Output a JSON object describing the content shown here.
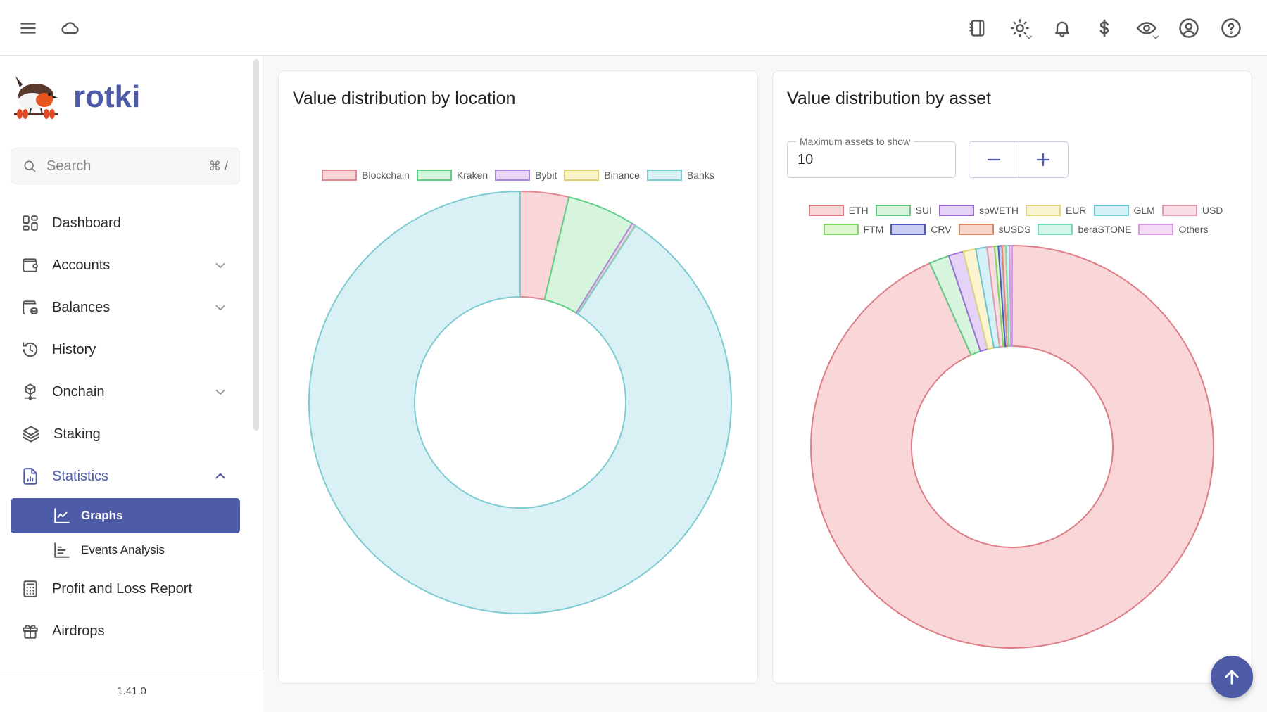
{
  "topbar": {
    "left_icons": [
      "menu-icon",
      "cloud-icon"
    ],
    "right_icons": [
      "notes-icon",
      "theme-sun-icon",
      "bell-icon",
      "currency-dollar-icon",
      "privacy-eye-icon",
      "account-icon",
      "help-icon"
    ]
  },
  "sidebar": {
    "brand": "rotki",
    "search": {
      "placeholder": "Search",
      "shortcut": "⌘  /"
    },
    "items": [
      {
        "label": "Dashboard",
        "icon": "dashboard-icon",
        "expandable": false
      },
      {
        "label": "Accounts",
        "icon": "wallet-icon",
        "expandable": true
      },
      {
        "label": "Balances",
        "icon": "balances-icon",
        "expandable": true
      },
      {
        "label": "History",
        "icon": "history-icon",
        "expandable": false
      },
      {
        "label": "Onchain",
        "icon": "onchain-icon",
        "expandable": true
      },
      {
        "label": "Staking",
        "icon": "layers-icon",
        "expandable": false
      },
      {
        "label": "Statistics",
        "icon": "statistics-icon",
        "expandable": true,
        "expanded": true
      },
      {
        "label": "Profit and Loss Report",
        "icon": "calculator-icon",
        "expandable": false
      },
      {
        "label": "Airdrops",
        "icon": "gift-icon",
        "expandable": false
      }
    ],
    "sub_items": [
      {
        "label": "Graphs",
        "icon": "line-chart-icon",
        "selected": true
      },
      {
        "label": "Events Analysis",
        "icon": "bar-chart-icon",
        "selected": false
      }
    ],
    "version": "1.41.0"
  },
  "location_card": {
    "title": "Value distribution by location"
  },
  "asset_card": {
    "title": "Value distribution by asset",
    "max_assets_label": "Maximum assets to show",
    "max_assets_value": "10",
    "decrement_label": "−",
    "increment_label": "+"
  },
  "colors": {
    "primary": "#4e5ba6"
  },
  "chart_data": [
    {
      "type": "pie",
      "variant": "doughnut",
      "title": "Value distribution by location",
      "legend_position": "top",
      "categories": [
        "Blockchain",
        "Kraken",
        "Bybit",
        "Binance",
        "Banks"
      ],
      "values": [
        3.7,
        5.2,
        0.25,
        0.05,
        90.8
      ],
      "unit": "% (estimated)",
      "fills": [
        "#f9d6d8",
        "#d6f5dc",
        "#ead8f5",
        "#f7f2cc",
        "#d9f0f5"
      ],
      "borders": [
        "#e08a92",
        "#5fcf86",
        "#a98ad8",
        "#dccf6f",
        "#7fcbd2"
      ]
    },
    {
      "type": "pie",
      "variant": "doughnut",
      "title": "Value distribution by asset",
      "legend_position": "top",
      "categories": [
        "ETH",
        "SUI",
        "spWETH",
        "EUR",
        "GLM",
        "USD",
        "FTM",
        "CRV",
        "sUSDS",
        "beraSTONE",
        "Others"
      ],
      "values": [
        93.3,
        1.6,
        1.2,
        1.0,
        0.9,
        0.6,
        0.3,
        0.3,
        0.3,
        0.3,
        0.2
      ],
      "unit": "% (estimated)",
      "fills": [
        "#f9d6d8",
        "#d6f5dc",
        "#e4d2f7",
        "#fbf5cf",
        "#d4f1f7",
        "#f9dde4",
        "#def6cf",
        "#c9cdf4",
        "#f5d6c8",
        "#d3f5ea",
        "#f7dcf7"
      ],
      "borders": [
        "#dd7e86",
        "#62c985",
        "#9a6fd6",
        "#e2d67c",
        "#6cc6d1",
        "#df9caa",
        "#84d46a",
        "#5059b8",
        "#d98a6b",
        "#7bd8b8",
        "#d59ae0"
      ]
    }
  ]
}
